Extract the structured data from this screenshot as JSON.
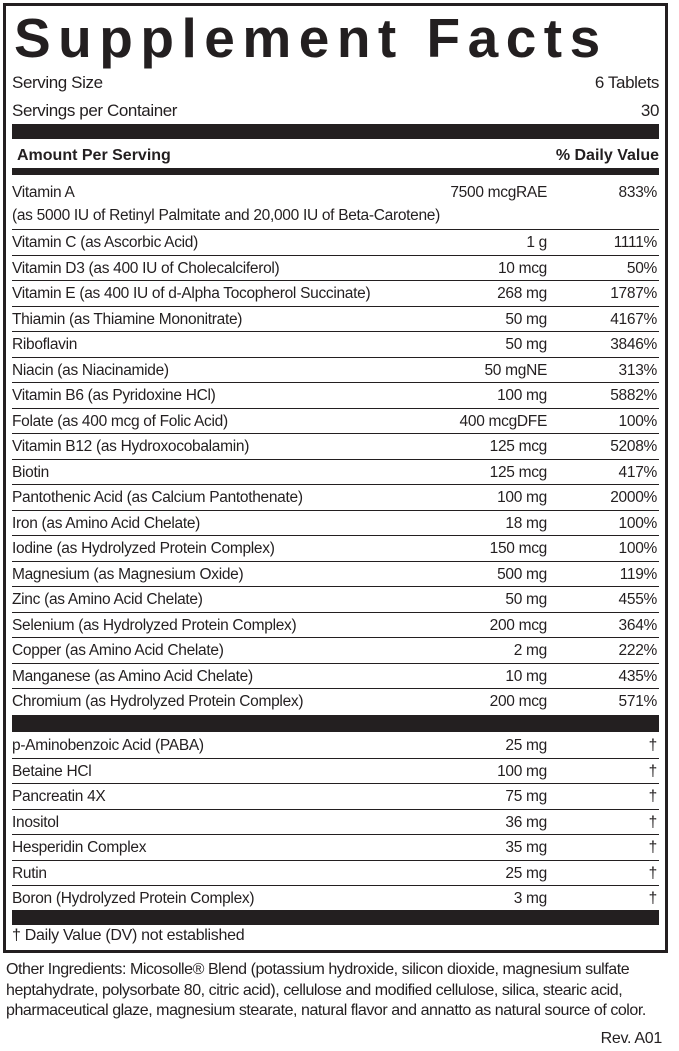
{
  "title": "Supplement Facts",
  "serving_size": {
    "label": "Serving Size",
    "value": "6 Tablets"
  },
  "servings_per_container": {
    "label": "Servings per Container",
    "value": "30"
  },
  "header": {
    "amount": "Amount Per Serving",
    "dv": "% Daily Value"
  },
  "vitamin_a": {
    "name": "Vitamin A",
    "amount": "7500 mcgRAE",
    "dv": "833%",
    "note": "(as 5000 IU of Retinyl Palmitate and 20,000 IU of Beta-Carotene)"
  },
  "nutrients": [
    {
      "name": "Vitamin C (as Ascorbic Acid)",
      "amount": "1 g",
      "dv": "1111%"
    },
    {
      "name": "Vitamin D3 (as 400 IU of Cholecalciferol)",
      "amount": "10 mcg",
      "dv": "50%"
    },
    {
      "name": "Vitamin E (as 400 IU of d-Alpha Tocopherol Succinate)",
      "amount": "268 mg",
      "dv": "1787%"
    },
    {
      "name": "Thiamin (as Thiamine Mononitrate)",
      "amount": "50 mg",
      "dv": "4167%"
    },
    {
      "name": "Riboflavin",
      "amount": "50 mg",
      "dv": "3846%"
    },
    {
      "name": "Niacin (as Niacinamide)",
      "amount": "50 mgNE",
      "dv": "313%"
    },
    {
      "name": "Vitamin B6 (as Pyridoxine HCl)",
      "amount": "100 mg",
      "dv": "5882%"
    },
    {
      "name": "Folate (as 400 mcg of Folic Acid)",
      "amount": "400 mcgDFE",
      "dv": "100%"
    },
    {
      "name": "Vitamin B12 (as Hydroxocobalamin)",
      "amount": "125 mcg",
      "dv": "5208%"
    },
    {
      "name": "Biotin",
      "amount": "125 mcg",
      "dv": "417%"
    },
    {
      "name": "Pantothenic Acid (as Calcium Pantothenate)",
      "amount": "100 mg",
      "dv": "2000%"
    },
    {
      "name": "Iron (as Amino Acid Chelate)",
      "amount": "18 mg",
      "dv": "100%"
    },
    {
      "name": "Iodine (as Hydrolyzed Protein Complex)",
      "amount": "150 mcg",
      "dv": "100%"
    },
    {
      "name": "Magnesium (as Magnesium Oxide)",
      "amount": "500 mg",
      "dv": "119%"
    },
    {
      "name": "Zinc (as Amino Acid Chelate)",
      "amount": "50 mg",
      "dv": "455%"
    },
    {
      "name": "Selenium (as Hydrolyzed Protein Complex)",
      "amount": "200 mcg",
      "dv": "364%"
    },
    {
      "name": "Copper (as Amino Acid Chelate)",
      "amount": "2 mg",
      "dv": "222%"
    },
    {
      "name": "Manganese (as Amino Acid Chelate)",
      "amount": "10 mg",
      "dv": "435%"
    },
    {
      "name": "Chromium (as Hydrolyzed Protein Complex)",
      "amount": "200 mcg",
      "dv": "571%"
    }
  ],
  "others": [
    {
      "name": "p-Aminobenzoic Acid (PABA)",
      "amount": "25 mg",
      "dv": "†"
    },
    {
      "name": "Betaine HCl",
      "amount": "100 mg",
      "dv": "†"
    },
    {
      "name": "Pancreatin 4X",
      "amount": "75 mg",
      "dv": "†"
    },
    {
      "name": "Inositol",
      "amount": "36 mg",
      "dv": "†"
    },
    {
      "name": "Hesperidin Complex",
      "amount": "35 mg",
      "dv": "†"
    },
    {
      "name": "Rutin",
      "amount": "25 mg",
      "dv": "†"
    },
    {
      "name": "Boron (Hydrolyzed Protein Complex)",
      "amount": "3 mg",
      "dv": "†"
    }
  ],
  "footnote": "† Daily Value (DV) not established",
  "other_ingredients": "Other Ingredients: Micosolle® Blend (potassium hydroxide, silicon dioxide, magnesium sulfate heptahydrate, polysorbate 80, citric acid), cellulose and modified cellulose, silica, stearic acid, pharmaceutical glaze, magnesium stearate, natural flavor and annatto as natural source of color.",
  "revision": "Rev. A01"
}
